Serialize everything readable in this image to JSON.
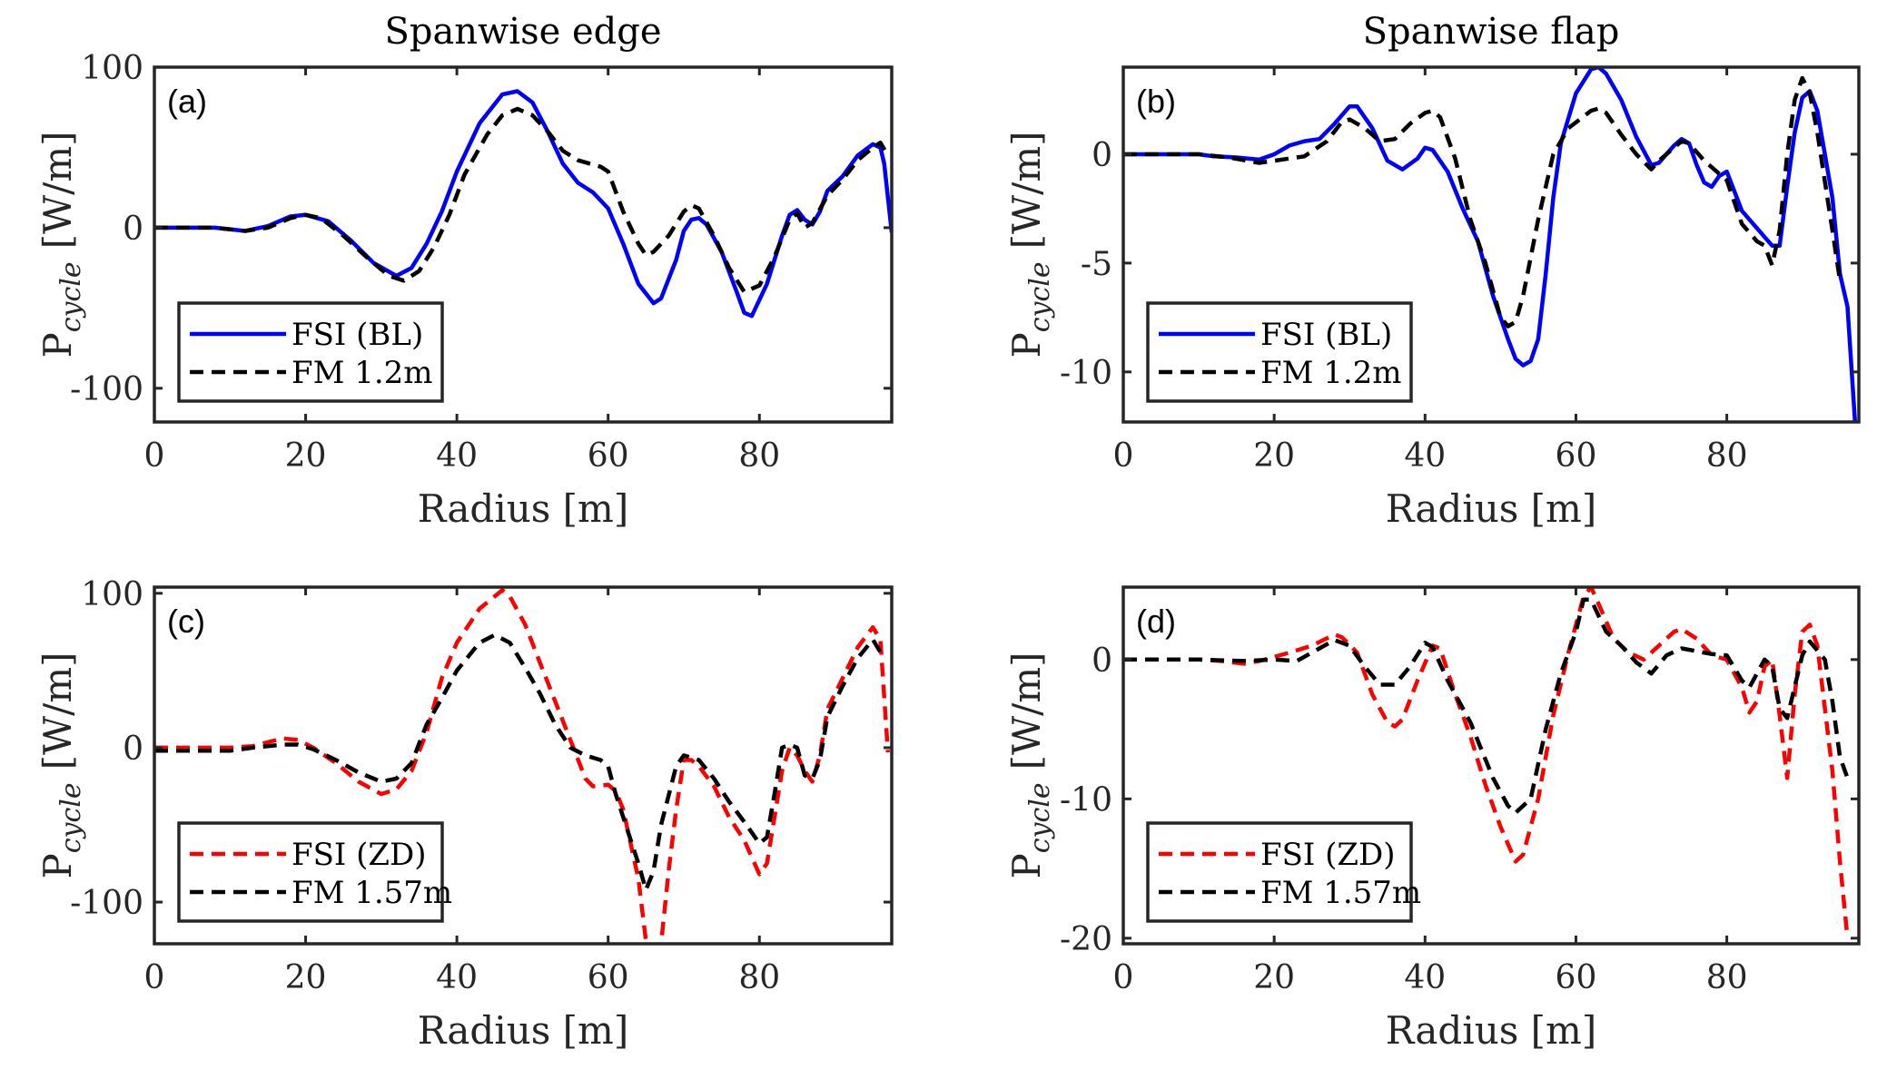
{
  "chart_data": [
    {
      "id": "a",
      "type": "line",
      "title": "Spanwise edge",
      "panel_label": "(a)",
      "xlabel": "Radius [m]",
      "ylabel_main": "P",
      "ylabel_sub": "cycle",
      "ylabel_unit": "[W/m]",
      "xlim": [
        0,
        97.5
      ],
      "ylim": [
        -121,
        100
      ],
      "xticks": [
        0,
        20,
        40,
        60,
        80
      ],
      "yticks": [
        -100,
        0,
        100
      ],
      "grid": false,
      "legend_position": "bottom-left",
      "series": [
        {
          "name": "FSI (BL)",
          "color": "#0000ff",
          "style": "solid",
          "x": [
            0,
            5,
            8,
            12,
            15,
            18,
            20,
            23,
            26,
            29,
            32,
            34,
            36,
            38,
            40,
            43,
            46,
            48,
            50,
            52,
            54,
            56,
            58,
            60,
            62,
            64,
            66,
            67,
            69,
            70,
            71,
            72,
            73,
            75,
            77,
            78,
            79,
            81,
            83,
            84,
            85,
            86,
            87,
            88,
            89,
            91,
            93,
            95,
            96,
            96.5,
            97.5
          ],
          "y": [
            0,
            0,
            0,
            -2,
            1,
            7,
            8,
            4,
            -8,
            -22,
            -30,
            -25,
            -10,
            10,
            35,
            65,
            83,
            85,
            78,
            60,
            40,
            28,
            22,
            12,
            -10,
            -35,
            -47,
            -44,
            -20,
            -2,
            5,
            6,
            2,
            -15,
            -40,
            -53,
            -55,
            -35,
            -5,
            8,
            11,
            5,
            2,
            10,
            23,
            32,
            45,
            52,
            50,
            40,
            -3
          ]
        },
        {
          "name": "FM 1.2m",
          "color": "#000000",
          "style": "dashed",
          "x": [
            0,
            8,
            12,
            15,
            18,
            20,
            22,
            25,
            28,
            31,
            33,
            35,
            37,
            39,
            41,
            44,
            46,
            48,
            50,
            52,
            54,
            56,
            59,
            60,
            62,
            64,
            65,
            66,
            68,
            70,
            71,
            72,
            74,
            76,
            78,
            80,
            82,
            84,
            85,
            86,
            87,
            89,
            91,
            93,
            95,
            96,
            97
          ],
          "y": [
            0,
            0,
            -2,
            0,
            6,
            8,
            6,
            -5,
            -18,
            -30,
            -33,
            -27,
            -12,
            8,
            33,
            58,
            70,
            74,
            70,
            60,
            48,
            42,
            38,
            35,
            10,
            -10,
            -17,
            -15,
            -5,
            10,
            14,
            12,
            -5,
            -25,
            -40,
            -36,
            -18,
            5,
            9,
            0,
            3,
            20,
            30,
            42,
            50,
            53,
            45
          ]
        }
      ]
    },
    {
      "id": "b",
      "type": "line",
      "title": "Spanwise flap",
      "panel_label": "(b)",
      "xlabel": "Radius [m]",
      "ylabel_main": "P",
      "ylabel_sub": "cycle",
      "ylabel_unit": "[W/m]",
      "xlim": [
        0,
        97.5
      ],
      "ylim": [
        -12.3,
        4.0
      ],
      "xticks": [
        0,
        20,
        40,
        60,
        80
      ],
      "yticks": [
        -10,
        -5,
        0
      ],
      "grid": false,
      "legend_position": "bottom-left",
      "series": [
        {
          "name": "FSI (BL)",
          "color": "#0000ff",
          "style": "solid",
          "x": [
            0,
            10,
            12,
            15,
            18,
            20,
            22,
            24,
            26,
            28,
            30,
            31,
            33,
            35,
            37,
            39,
            40,
            41,
            43,
            45,
            47,
            49,
            51,
            52,
            53,
            54,
            55,
            56,
            57,
            58,
            60,
            62,
            63,
            64,
            66,
            68,
            70,
            71,
            73,
            74,
            75,
            76,
            77,
            78,
            79,
            80,
            82,
            84,
            86,
            87,
            88,
            89,
            90,
            91,
            92,
            94,
            95,
            96,
            97
          ],
          "y": [
            0,
            0,
            -0.1,
            -0.15,
            -0.25,
            0,
            0.4,
            0.6,
            0.7,
            1.4,
            2.2,
            2.2,
            1.2,
            -0.3,
            -0.7,
            -0.2,
            0.3,
            0.2,
            -0.8,
            -2.5,
            -4.0,
            -6.5,
            -8.5,
            -9.4,
            -9.7,
            -9.5,
            -8.5,
            -5.5,
            -2.0,
            0.5,
            2.8,
            3.9,
            4.0,
            3.7,
            2.5,
            0.8,
            -0.5,
            -0.4,
            0.4,
            0.7,
            0.5,
            -0.5,
            -1.3,
            -1.5,
            -1.0,
            -0.8,
            -2.6,
            -3.4,
            -4.2,
            -4.2,
            -1.5,
            1.0,
            2.6,
            2.9,
            2.0,
            -2.0,
            -5.5,
            -7.0,
            -12.3
          ]
        },
        {
          "name": "FM 1.2m",
          "color": "#000000",
          "style": "dashed",
          "x": [
            0,
            10,
            14,
            18,
            20,
            24,
            27,
            29,
            30,
            32,
            34,
            36,
            38,
            40,
            41,
            42,
            44,
            46,
            48,
            50,
            51,
            52,
            53,
            55,
            57,
            59,
            62,
            63,
            64,
            66,
            68,
            70,
            71,
            73,
            74,
            75,
            77,
            79,
            80,
            82,
            84,
            85,
            86,
            87,
            88,
            89,
            90,
            91,
            92,
            94,
            95
          ],
          "y": [
            0,
            0,
            -0.15,
            -0.4,
            -0.3,
            -0.1,
            0.6,
            1.5,
            1.6,
            1.2,
            0.6,
            0.7,
            1.4,
            1.9,
            2.0,
            1.7,
            -0.2,
            -3.0,
            -5.0,
            -7.5,
            -7.9,
            -7.7,
            -6.5,
            -3.0,
            0,
            1.2,
            2.0,
            2.1,
            1.9,
            0.9,
            0,
            -0.7,
            -0.3,
            0.3,
            0.6,
            0.5,
            -0.3,
            -0.9,
            -1.2,
            -3.2,
            -4.0,
            -4.2,
            -5.1,
            -3.5,
            0,
            2.5,
            3.5,
            2.8,
            1.0,
            -3.5,
            -5.8
          ]
        }
      ]
    },
    {
      "id": "c",
      "type": "line",
      "title": "",
      "panel_label": "(c)",
      "xlabel": "Radius [m]",
      "ylabel_main": "P",
      "ylabel_sub": "cycle",
      "ylabel_unit": "[W/m]",
      "xlim": [
        0,
        97.5
      ],
      "ylim": [
        -127,
        104
      ],
      "xticks": [
        0,
        20,
        40,
        60,
        80
      ],
      "yticks": [
        -100,
        0,
        100
      ],
      "grid": false,
      "legend_position": "bottom-left",
      "series": [
        {
          "name": "FSI (ZD)",
          "color": "#ff0000",
          "style": "dashed",
          "x": [
            0,
            10,
            13,
            17,
            19,
            21,
            24,
            27,
            30,
            32,
            34,
            36,
            38,
            40,
            43,
            46,
            47,
            49,
            51,
            53,
            55,
            57,
            58,
            60,
            61,
            62,
            64,
            65,
            66,
            67,
            68,
            69,
            70,
            71,
            72,
            74,
            76,
            78,
            80,
            81,
            82,
            83,
            84,
            85,
            86,
            87,
            88,
            89,
            91,
            93,
            95,
            96,
            97
          ],
          "y": [
            0,
            0,
            1,
            6,
            5,
            0,
            -10,
            -22,
            -30,
            -27,
            -15,
            10,
            45,
            68,
            90,
            102,
            98,
            80,
            55,
            30,
            5,
            -20,
            -25,
            -24,
            -28,
            -40,
            -85,
            -125,
            -130,
            -127,
            -80,
            -40,
            -8,
            -8,
            -12,
            -25,
            -45,
            -60,
            -82,
            -75,
            -45,
            -15,
            0,
            -5,
            -15,
            -22,
            -5,
            25,
            45,
            65,
            78,
            70,
            -3
          ]
        },
        {
          "name": "FM 1.57m",
          "color": "#000000",
          "style": "dashed",
          "x": [
            0,
            10,
            13,
            17,
            19,
            21,
            24,
            27,
            30,
            32,
            34,
            36,
            38,
            40,
            43,
            45,
            47,
            49,
            51,
            53,
            55,
            57,
            59,
            60,
            61,
            62,
            64,
            65,
            66,
            67,
            69,
            70,
            72,
            74,
            76,
            78,
            80,
            81,
            82,
            83,
            84,
            85,
            86,
            87,
            88,
            89,
            91,
            93,
            95,
            96
          ],
          "y": [
            -2,
            -2,
            0,
            2,
            2,
            -1,
            -8,
            -16,
            -22,
            -20,
            -10,
            15,
            32,
            50,
            68,
            73,
            68,
            52,
            35,
            15,
            0,
            -5,
            -8,
            -12,
            -30,
            -45,
            -75,
            -92,
            -80,
            -50,
            -12,
            -5,
            -8,
            -20,
            -35,
            -48,
            -62,
            -58,
            -30,
            0,
            2,
            0,
            -18,
            -20,
            -8,
            20,
            40,
            58,
            70,
            62
          ]
        }
      ]
    },
    {
      "id": "d",
      "type": "line",
      "title": "",
      "panel_label": "(d)",
      "xlabel": "Radius [m]",
      "ylabel_main": "P",
      "ylabel_sub": "cycle",
      "ylabel_unit": "[W/m]",
      "xlim": [
        0,
        97.5
      ],
      "ylim": [
        -20.4,
        5.2
      ],
      "xticks": [
        0,
        20,
        40,
        60,
        80
      ],
      "yticks": [
        -20,
        -10,
        0
      ],
      "grid": false,
      "legend_position": "bottom-left",
      "series": [
        {
          "name": "FSI (ZD)",
          "color": "#ff0000",
          "style": "dashed",
          "x": [
            0,
            10,
            13,
            16,
            18,
            22,
            25,
            28,
            29,
            31,
            33,
            35,
            36,
            37,
            39,
            41,
            42,
            44,
            46,
            48,
            50,
            52,
            53,
            55,
            57,
            59,
            61,
            62,
            63,
            65,
            67,
            69,
            71,
            73,
            74,
            76,
            78,
            80,
            82,
            83,
            84,
            85,
            86,
            87,
            88,
            89,
            90,
            91,
            92,
            94,
            95,
            96
          ],
          "y": [
            0,
            0,
            -0.1,
            -0.3,
            -0.1,
            0.5,
            1.0,
            1.8,
            1.6,
            0.5,
            -2.5,
            -4.5,
            -4.8,
            -4.3,
            -1.5,
            1.0,
            0.8,
            -2.5,
            -5.5,
            -9.0,
            -12.0,
            -14.5,
            -14.0,
            -10.0,
            -4.0,
            0.5,
            4.5,
            5.2,
            4.0,
            1.5,
            0.5,
            0,
            1.0,
            2.0,
            2.2,
            1.5,
            0.3,
            0,
            -2.0,
            -3.8,
            -3.0,
            -0.5,
            0,
            -4.0,
            -8.5,
            -2.5,
            2.0,
            2.5,
            1.0,
            -8.0,
            -14.5,
            -20.0
          ]
        },
        {
          "name": "FM 1.57m",
          "color": "#000000",
          "style": "dashed",
          "x": [
            0,
            10,
            16,
            20,
            23,
            26,
            28,
            30,
            32,
            34,
            36,
            38,
            40,
            41,
            43,
            46,
            49,
            51,
            52,
            54,
            56,
            58,
            60,
            61,
            62,
            64,
            66,
            68,
            70,
            72,
            74,
            76,
            78,
            80,
            82,
            83,
            84,
            85,
            86,
            87,
            88,
            90,
            91,
            93,
            94,
            95,
            96
          ],
          "y": [
            0,
            0,
            -0.1,
            0,
            -0.1,
            0.8,
            1.4,
            1.0,
            -0.5,
            -1.8,
            -1.8,
            -0.5,
            1.2,
            0.9,
            -1.5,
            -4.5,
            -8.5,
            -10.5,
            -11.0,
            -10.0,
            -5.0,
            -1.0,
            2.0,
            4.3,
            4.3,
            2.0,
            1.0,
            -0.2,
            -1.0,
            0.3,
            0.8,
            0.6,
            0.4,
            0.3,
            -1.5,
            -2.0,
            -1.0,
            0,
            -0.5,
            -3.5,
            -4.2,
            0.3,
            1.3,
            0,
            -3.0,
            -7.0,
            -8.5
          ]
        }
      ]
    }
  ]
}
